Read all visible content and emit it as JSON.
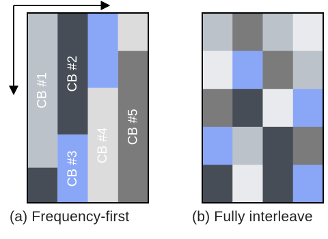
{
  "colors": {
    "light_gray": "#bcc2ca",
    "dark_slate": "#474d56",
    "blue": "#8aa6f7",
    "pale_gray": "#dcdcdc",
    "mid_gray": "#7b7b7b",
    "near_white": "#e8eaed",
    "border": "#000000"
  },
  "panel_a": {
    "caption": "(a) Frequency-first",
    "arrow_directions": [
      "right",
      "down"
    ],
    "columns": [
      {
        "segments": [
          {
            "color": "light_gray",
            "share": 0.815,
            "label": "CB #1",
            "label_color": "#ffffff"
          },
          {
            "color": "dark_slate",
            "share": 0.185,
            "label": ""
          }
        ]
      },
      {
        "segments": [
          {
            "color": "dark_slate",
            "share": 0.64,
            "label": "CB #2",
            "label_color": "#ffffff"
          },
          {
            "color": "blue",
            "share": 0.36,
            "label": "CB #3",
            "label_color": "#ffffff"
          }
        ]
      },
      {
        "segments": [
          {
            "color": "blue",
            "share": 0.395,
            "label": ""
          },
          {
            "color": "pale_gray",
            "share": 0.605,
            "label": "CB #4",
            "label_color": "#ffffff"
          }
        ]
      },
      {
        "segments": [
          {
            "color": "pale_gray",
            "share": 0.2,
            "label": ""
          },
          {
            "color": "mid_gray",
            "share": 0.8,
            "label": "CB #5",
            "label_color": "#ffffff"
          }
        ]
      }
    ]
  },
  "panel_b": {
    "caption": "(b) Fully interleave",
    "grid": [
      [
        "light_gray",
        "mid_gray",
        "light_gray",
        "near_white"
      ],
      [
        "near_white",
        "blue",
        "mid_gray",
        "light_gray"
      ],
      [
        "mid_gray",
        "dark_slate",
        "near_white",
        "blue"
      ],
      [
        "blue",
        "light_gray",
        "dark_slate",
        "mid_gray"
      ],
      [
        "dark_slate",
        "near_white",
        "dark_slate",
        "blue"
      ]
    ]
  }
}
